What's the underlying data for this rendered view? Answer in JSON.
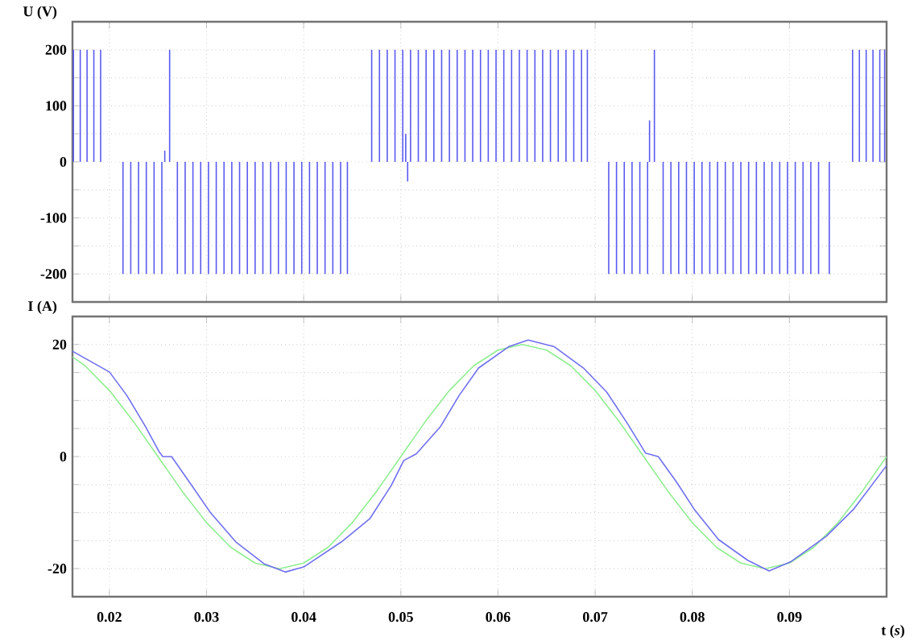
{
  "chart_data": [
    {
      "type": "bar",
      "ylabel": "U (V)",
      "color": "#5a5af0",
      "grid": true,
      "tick_labels": "y",
      "xlim": [
        0.0162,
        0.1
      ],
      "xticks": [
        0.02,
        0.03,
        0.04,
        0.05,
        0.06,
        0.07,
        0.08,
        0.09
      ],
      "ylim": [
        -250,
        250
      ],
      "yticks": [
        -200,
        {
          "value": -150,
          "label": null
        },
        -100,
        {
          "value": -50,
          "label": null
        },
        0,
        {
          "value": 50,
          "label": null
        },
        100,
        {
          "value": 150,
          "label": null
        },
        200
      ],
      "x": [
        0.0163,
        0.017,
        0.0177,
        0.0184,
        0.0191,
        0.0214,
        0.0222,
        0.023,
        0.0238,
        0.0246,
        0.0254,
        0.0257,
        0.0262,
        0.027,
        0.0278,
        0.0286,
        0.0294,
        0.0302,
        0.031,
        0.0318,
        0.0326,
        0.0334,
        0.0342,
        0.035,
        0.0358,
        0.0366,
        0.0374,
        0.0382,
        0.039,
        0.0398,
        0.0406,
        0.0414,
        0.0422,
        0.043,
        0.0438,
        0.0445,
        0.047,
        0.0478,
        0.0486,
        0.0494,
        0.0502,
        0.0505,
        0.0507,
        0.051,
        0.0518,
        0.0526,
        0.0534,
        0.0542,
        0.055,
        0.0558,
        0.0566,
        0.0574,
        0.0582,
        0.059,
        0.0598,
        0.0606,
        0.0614,
        0.0622,
        0.063,
        0.0638,
        0.0646,
        0.0654,
        0.0662,
        0.067,
        0.0678,
        0.0686,
        0.0692,
        0.0714,
        0.0722,
        0.073,
        0.0738,
        0.0746,
        0.0754,
        0.0756,
        0.0761,
        0.077,
        0.0778,
        0.0786,
        0.0794,
        0.0802,
        0.081,
        0.0818,
        0.0826,
        0.0834,
        0.0842,
        0.085,
        0.0858,
        0.0866,
        0.0874,
        0.0882,
        0.089,
        0.0898,
        0.0906,
        0.0914,
        0.0922,
        0.093,
        0.0941,
        0.0965,
        0.0972,
        0.0979,
        0.0986,
        0.0993,
        0.0998
      ],
      "values": [
        200,
        200,
        200,
        200,
        200,
        -200,
        -200,
        -200,
        -200,
        -200,
        -200,
        20,
        200,
        -200,
        -200,
        -200,
        -200,
        -200,
        -200,
        -200,
        -200,
        -200,
        -200,
        -200,
        -200,
        -200,
        -200,
        -200,
        -200,
        -200,
        -200,
        -200,
        -200,
        -200,
        -200,
        -200,
        200,
        200,
        200,
        200,
        200,
        50,
        -35,
        200,
        200,
        200,
        200,
        200,
        200,
        200,
        200,
        200,
        200,
        200,
        200,
        200,
        200,
        200,
        200,
        200,
        200,
        200,
        200,
        200,
        200,
        200,
        200,
        -200,
        -200,
        -200,
        -200,
        -200,
        -200,
        74,
        200,
        -200,
        -200,
        -200,
        -200,
        -200,
        -200,
        -200,
        -200,
        -200,
        -200,
        -200,
        -200,
        -200,
        -200,
        -200,
        -200,
        -200,
        -200,
        -200,
        -200,
        -200,
        -200,
        200,
        200,
        200,
        200,
        200,
        200
      ]
    },
    {
      "type": "line",
      "ylabel": "I (A)",
      "xlabel": "t (*s*)",
      "grid": true,
      "xlim": [
        0.0162,
        0.1
      ],
      "xticks": [
        0.02,
        0.03,
        0.04,
        0.05,
        0.06,
        0.07,
        0.08,
        0.09
      ],
      "ylim": [
        -25,
        25
      ],
      "yticks": [
        -20,
        {
          "value": -15,
          "label": null
        },
        {
          "value": -10,
          "label": null
        },
        {
          "value": -5,
          "label": null
        },
        0,
        {
          "value": 5,
          "label": null
        },
        {
          "value": 10,
          "label": null
        },
        {
          "value": 15,
          "label": null
        },
        20
      ],
      "series": [
        {
          "color": "#90ee90",
          "x": [
            0.0162,
            0.0175,
            0.02,
            0.0225,
            0.025,
            0.0275,
            0.03,
            0.0325,
            0.035,
            0.0375,
            0.04,
            0.0425,
            0.045,
            0.0475,
            0.05,
            0.0525,
            0.055,
            0.0575,
            0.06,
            0.0625,
            0.065,
            0.0675,
            0.07,
            0.0725,
            0.075,
            0.0775,
            0.08,
            0.0825,
            0.085,
            0.0875,
            0.09,
            0.0925,
            0.095,
            0.0975,
            0.1
          ],
          "values": [
            17.8,
            16.2,
            11.8,
            6.2,
            0,
            -6.2,
            -11.8,
            -16.2,
            -19.0,
            -20,
            -19.0,
            -16.2,
            -11.8,
            -6.2,
            0,
            6.2,
            11.8,
            16.2,
            19.0,
            20,
            19.0,
            16.2,
            11.8,
            6.2,
            0,
            -6.2,
            -11.8,
            -16.2,
            -19.0,
            -20,
            -19.0,
            -16.2,
            -11.8,
            -6.2,
            0
          ]
        },
        {
          "color": "#7070f0",
          "x": [
            0.0162,
            0.02,
            0.0218,
            0.0237,
            0.0251,
            0.0255,
            0.0264,
            0.0285,
            0.0304,
            0.033,
            0.0359,
            0.0381,
            0.04,
            0.0439,
            0.0468,
            0.049,
            0.0503,
            0.0516,
            0.0541,
            0.056,
            0.058,
            0.0611,
            0.0631,
            0.0658,
            0.0688,
            0.0712,
            0.0734,
            0.0752,
            0.0765,
            0.0784,
            0.0802,
            0.0827,
            0.0857,
            0.0879,
            0.0901,
            0.0938,
            0.0966,
            0.1
          ],
          "values": [
            18.8,
            15.1,
            10.9,
            5.4,
            0.9,
            0,
            0,
            -5.2,
            -10,
            -15.2,
            -19.1,
            -20.6,
            -19.7,
            -15.2,
            -11.1,
            -5.2,
            -0.7,
            0.5,
            5.4,
            10.9,
            15.8,
            19.6,
            20.8,
            19.6,
            15.8,
            11.5,
            5.7,
            0.6,
            0,
            -4.6,
            -9.4,
            -14.8,
            -18.5,
            -20.4,
            -18.8,
            -14.2,
            -9.4,
            -1.6
          ]
        }
      ]
    }
  ]
}
